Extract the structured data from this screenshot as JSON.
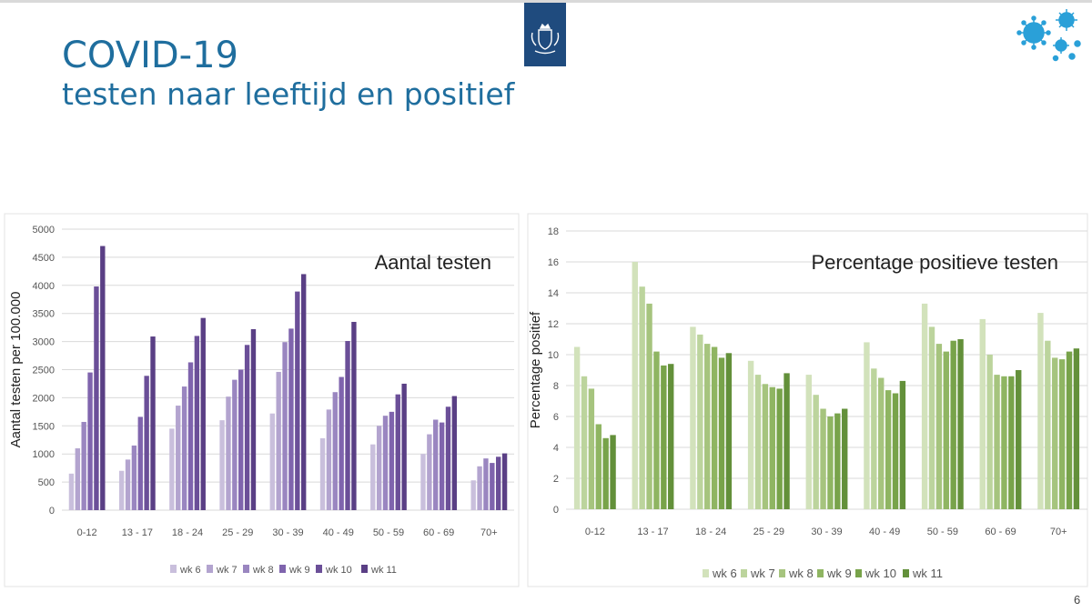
{
  "header": {
    "title": "COVID-19",
    "subtitle": "testen naar leeftijd en positief"
  },
  "page_number": "6",
  "colors": {
    "title": "#1f6e9e",
    "logo_bg": "#1f4b7e",
    "virus": "#2aa0d8",
    "purple": [
      "#c9bfdc",
      "#b3a4cf",
      "#9a86c0",
      "#7f64ad",
      "#6b4f98",
      "#5a3f85"
    ],
    "green": [
      "#d2e2bb",
      "#bcd49d",
      "#a6c47e",
      "#8fb562",
      "#78a34a",
      "#63903a"
    ]
  },
  "chart_data": [
    {
      "type": "bar",
      "title": "Aantal testen",
      "xlabel": "",
      "ylabel": "Aantal testen per 100.000",
      "ylim": [
        0,
        5000
      ],
      "yticks": [
        0,
        500,
        1000,
        1500,
        2000,
        2500,
        3000,
        3500,
        4000,
        4500,
        5000
      ],
      "categories": [
        "0-12",
        "13 - 17",
        "18 - 24",
        "25 - 29",
        "30 - 39",
        "40 - 49",
        "50 - 59",
        "60 - 69",
        "70+"
      ],
      "legend_position": "bottom",
      "series": [
        {
          "name": "wk 6",
          "values": [
            650,
            700,
            1450,
            1600,
            1720,
            1280,
            1170,
            1000,
            530
          ]
        },
        {
          "name": "wk 7",
          "values": [
            1100,
            900,
            1860,
            2020,
            2460,
            1790,
            1500,
            1350,
            780
          ]
        },
        {
          "name": "wk 8",
          "values": [
            1570,
            1150,
            2200,
            2320,
            2990,
            2100,
            1680,
            1610,
            920
          ]
        },
        {
          "name": "wk 9",
          "values": [
            2450,
            1660,
            2630,
            2500,
            3230,
            2370,
            1750,
            1560,
            840
          ]
        },
        {
          "name": "wk 10",
          "values": [
            3980,
            2390,
            3100,
            2940,
            3890,
            3010,
            2060,
            1840,
            950
          ]
        },
        {
          "name": "wk 11",
          "values": [
            4700,
            3090,
            3420,
            3220,
            4200,
            3350,
            2250,
            2030,
            1010
          ]
        }
      ]
    },
    {
      "type": "bar",
      "title": "Percentage positieve testen",
      "xlabel": "",
      "ylabel": "Percentage positief",
      "ylim": [
        0,
        18
      ],
      "yticks": [
        0,
        2,
        4,
        6,
        8,
        10,
        12,
        14,
        16,
        18
      ],
      "categories": [
        "0-12",
        "13 - 17",
        "18 - 24",
        "25 - 29",
        "30 - 39",
        "40 - 49",
        "50 - 59",
        "60 - 69",
        "70+"
      ],
      "legend_position": "bottom",
      "series": [
        {
          "name": "wk 6",
          "values": [
            10.5,
            16.0,
            11.8,
            9.6,
            8.7,
            10.8,
            13.3,
            12.3,
            12.7
          ]
        },
        {
          "name": "wk 7",
          "values": [
            8.6,
            14.4,
            11.3,
            8.7,
            7.4,
            9.1,
            11.8,
            10.0,
            10.9
          ]
        },
        {
          "name": "wk 8",
          "values": [
            7.8,
            13.3,
            10.7,
            8.1,
            6.5,
            8.5,
            10.7,
            8.7,
            9.8
          ]
        },
        {
          "name": "wk 9",
          "values": [
            5.5,
            10.2,
            10.5,
            7.9,
            6.0,
            7.7,
            10.2,
            8.6,
            9.7
          ]
        },
        {
          "name": "wk 10",
          "values": [
            4.6,
            9.3,
            9.8,
            7.8,
            6.2,
            7.5,
            10.9,
            8.6,
            10.2
          ]
        },
        {
          "name": "wk 11",
          "values": [
            4.8,
            9.4,
            10.1,
            8.8,
            6.5,
            8.3,
            11.0,
            9.0,
            10.4
          ]
        }
      ]
    }
  ]
}
